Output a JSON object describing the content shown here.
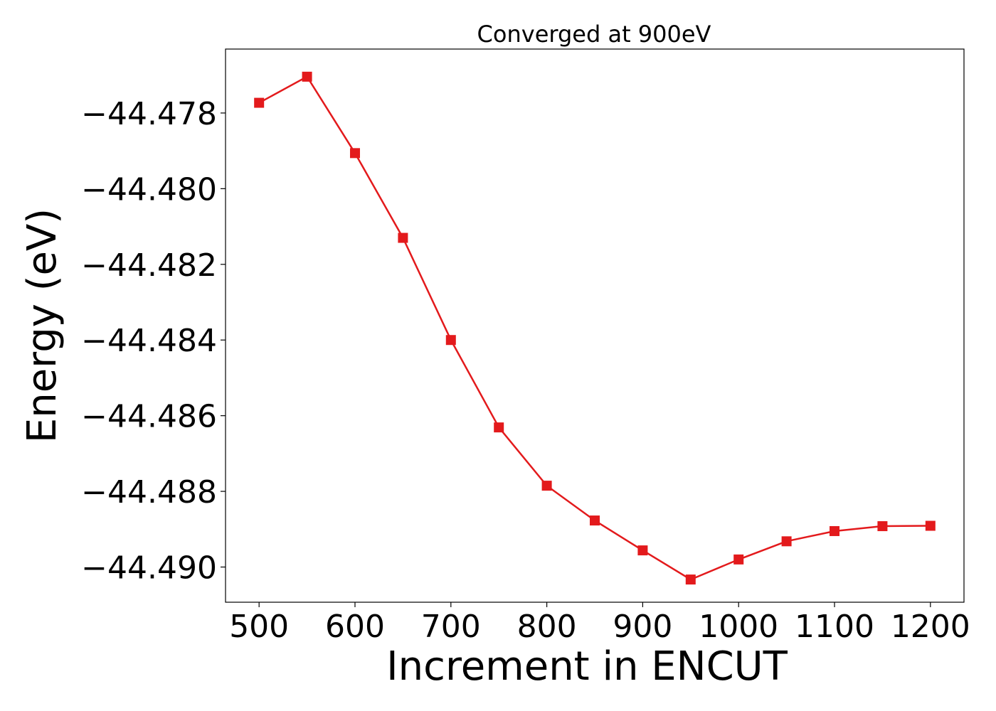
{
  "chart_data": {
    "type": "line",
    "title": "Converged at 900eV",
    "xlabel": "Increment in ENCUT",
    "ylabel": "Energy (eV)",
    "xlim": [
      465,
      1235
    ],
    "ylim": [
      -44.49093,
      -44.47631
    ],
    "xticks": [
      500,
      600,
      700,
      800,
      900,
      1000,
      1100,
      1200
    ],
    "yticks": [
      -44.478,
      -44.48,
      -44.482,
      -44.484,
      -44.486,
      -44.488,
      -44.49
    ],
    "ytick_labels": [
      "−44.478",
      "−44.480",
      "−44.482",
      "−44.484",
      "−44.486",
      "−44.488",
      "−44.490"
    ],
    "grid": false,
    "series": [
      {
        "color": "#e31a1c",
        "marker": "square",
        "x": [
          500,
          550,
          600,
          650,
          700,
          750,
          800,
          850,
          900,
          950,
          1000,
          1050,
          1100,
          1150,
          1200
        ],
        "y": [
          -44.47773,
          -44.47704,
          -44.47906,
          -44.4813,
          -44.484,
          -44.48631,
          -44.48785,
          -44.48877,
          -44.48956,
          -44.49033,
          -44.4898,
          -44.48932,
          -44.48905,
          -44.48892,
          -44.48891
        ]
      }
    ]
  }
}
